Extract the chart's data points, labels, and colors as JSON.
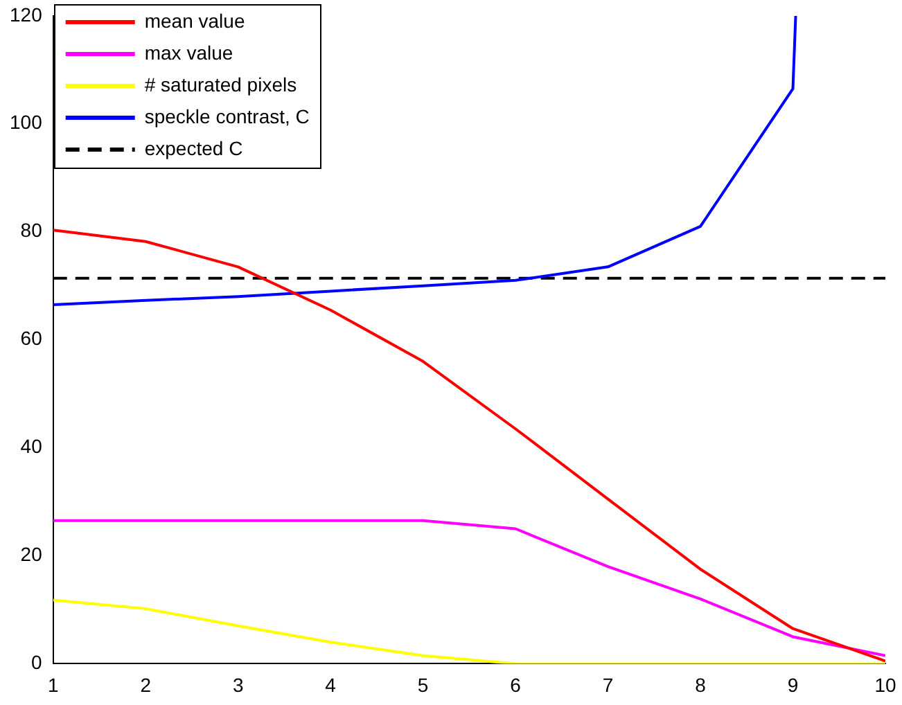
{
  "chart_data": {
    "type": "line",
    "x": [
      1,
      2,
      3,
      4,
      5,
      6,
      7,
      8,
      9,
      10
    ],
    "series": [
      {
        "name": "mean value",
        "color": "#ff0000",
        "values": [
          80.3,
          78.2,
          73.5,
          65.5,
          56,
          43.5,
          30.5,
          17.5,
          6.5,
          0.5
        ]
      },
      {
        "name": "max value",
        "color": "#ff00ff",
        "values": [
          26.5,
          26.5,
          26.5,
          26.5,
          26.5,
          25,
          18,
          12,
          5,
          1.5
        ]
      },
      {
        "name": "# saturated pixels",
        "color": "#ffff00",
        "values": [
          11.8,
          10.2,
          7,
          4,
          1.5,
          0,
          0,
          0,
          0,
          0
        ]
      },
      {
        "name": "speckle contrast, C",
        "color": "#0000ff",
        "x": [
          1,
          2,
          3,
          4,
          5,
          6,
          7,
          8,
          9,
          9.03
        ],
        "values": [
          66.5,
          67.3,
          68,
          69,
          70,
          71,
          73.5,
          81,
          106.5,
          120
        ]
      },
      {
        "name": "expected C",
        "color": "#000000",
        "x": [
          1,
          10
        ],
        "values": [
          71.4,
          71.4
        ],
        "line_style": "dashed"
      }
    ],
    "xlim": [
      1,
      10
    ],
    "xticks": [
      1,
      2,
      3,
      4,
      5,
      6,
      7,
      8,
      9,
      10
    ],
    "ylim": [
      0,
      120
    ],
    "yticks": [
      0,
      20,
      40,
      60,
      80,
      100,
      120
    ],
    "legend": "top left",
    "marker": "none",
    "line_style": "solid"
  }
}
